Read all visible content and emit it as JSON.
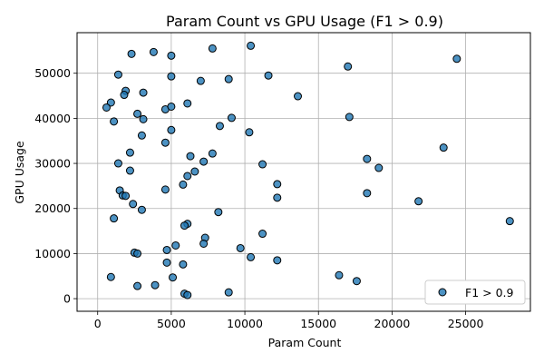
{
  "chart_data": {
    "type": "scatter",
    "title": "Param Count vs GPU Usage (F1 > 0.9)",
    "xlabel": "Param Count",
    "ylabel": "GPU Usage",
    "xlim": [
      -1400,
      29400
    ],
    "ylim": [
      -2800,
      59000
    ],
    "xticks": [
      0,
      5000,
      10000,
      15000,
      20000,
      25000
    ],
    "yticks": [
      0,
      10000,
      20000,
      30000,
      40000,
      50000
    ],
    "grid": true,
    "legend_position": "lower-right",
    "marker_color": "#1f77b4",
    "marker_edge_color": "#000000",
    "series": [
      {
        "name": "F1 > 0.9",
        "points": [
          [
            2300,
            54300
          ],
          [
            3800,
            54700
          ],
          [
            5000,
            53900
          ],
          [
            7800,
            55500
          ],
          [
            10400,
            56100
          ],
          [
            1400,
            49700
          ],
          [
            5000,
            49300
          ],
          [
            7000,
            48300
          ],
          [
            8900,
            48700
          ],
          [
            11600,
            49500
          ],
          [
            17000,
            51500
          ],
          [
            24400,
            53200
          ],
          [
            1900,
            46100
          ],
          [
            1800,
            45200
          ],
          [
            3100,
            45700
          ],
          [
            13600,
            44900
          ],
          [
            900,
            43500
          ],
          [
            600,
            42400
          ],
          [
            4600,
            42000
          ],
          [
            5000,
            42600
          ],
          [
            6100,
            43300
          ],
          [
            2700,
            41000
          ],
          [
            1100,
            39300
          ],
          [
            3100,
            39800
          ],
          [
            9100,
            40100
          ],
          [
            17100,
            40300
          ],
          [
            8300,
            38300
          ],
          [
            5000,
            37400
          ],
          [
            10300,
            36900
          ],
          [
            3000,
            36200
          ],
          [
            4600,
            34600
          ],
          [
            23500,
            33500
          ],
          [
            2200,
            32400
          ],
          [
            7800,
            32200
          ],
          [
            6300,
            31600
          ],
          [
            18300,
            31000
          ],
          [
            1400,
            30000
          ],
          [
            7200,
            30400
          ],
          [
            11200,
            29800
          ],
          [
            19100,
            29000
          ],
          [
            2200,
            28400
          ],
          [
            6600,
            28200
          ],
          [
            6100,
            27200
          ],
          [
            5800,
            25300
          ],
          [
            12200,
            25400
          ],
          [
            1500,
            24000
          ],
          [
            4600,
            24200
          ],
          [
            18300,
            23400
          ],
          [
            1700,
            22900
          ],
          [
            1900,
            22800
          ],
          [
            12200,
            22400
          ],
          [
            21800,
            21600
          ],
          [
            2400,
            21000
          ],
          [
            3000,
            19700
          ],
          [
            8200,
            19200
          ],
          [
            1100,
            17800
          ],
          [
            28000,
            17200
          ],
          [
            6100,
            16600
          ],
          [
            5900,
            16200
          ],
          [
            7300,
            13500
          ],
          [
            11200,
            14400
          ],
          [
            5300,
            11800
          ],
          [
            7200,
            12200
          ],
          [
            9700,
            11200
          ],
          [
            4700,
            10800
          ],
          [
            2500,
            10200
          ],
          [
            2700,
            10000
          ],
          [
            10400,
            9200
          ],
          [
            12200,
            8500
          ],
          [
            4700,
            8000
          ],
          [
            5800,
            7600
          ],
          [
            900,
            4800
          ],
          [
            5100,
            4700
          ],
          [
            16400,
            5200
          ],
          [
            17600,
            3900
          ],
          [
            2700,
            2800
          ],
          [
            3900,
            3000
          ],
          [
            5900,
            1100
          ],
          [
            6100,
            800
          ],
          [
            8900,
            1400
          ]
        ]
      }
    ]
  }
}
